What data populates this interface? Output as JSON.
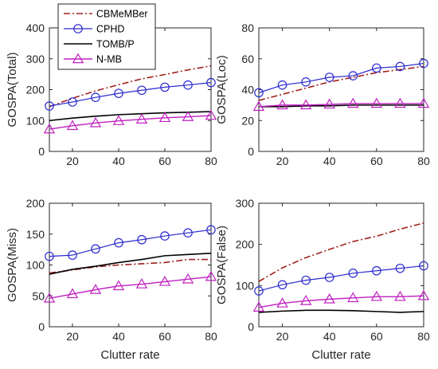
{
  "colors": {
    "CBMeMBer": "#a0201c",
    "CPHD": "#2a2ad0",
    "TOMB/P": "#000000",
    "N-MB": "#c020c0"
  },
  "chart_data": [
    {
      "type": "line",
      "ylabel": "GOSPA(Total)",
      "xlabel": "",
      "xlim": [
        10,
        80
      ],
      "ylim": [
        0,
        400
      ],
      "xticks": [
        20,
        40,
        60,
        80
      ],
      "yticks": [
        0,
        100,
        200,
        300,
        400
      ],
      "grid": false,
      "legend": "top-left",
      "x": [
        10,
        20,
        30,
        40,
        50,
        60,
        70,
        80
      ],
      "series": [
        {
          "name": "CBMeMBer",
          "values": [
            145,
            172,
            196,
            216,
            235,
            249,
            264,
            277
          ]
        },
        {
          "name": "CPHD",
          "values": [
            147,
            160,
            175,
            188,
            198,
            208,
            215,
            223
          ]
        },
        {
          "name": "TOMB/P",
          "values": [
            100,
            108,
            114,
            119,
            122,
            125,
            127,
            129
          ]
        },
        {
          "name": "N-MB",
          "values": [
            72,
            83,
            92,
            99,
            104,
            109,
            112,
            116
          ]
        }
      ]
    },
    {
      "type": "line",
      "ylabel": "GOSPA(Loc)",
      "xlabel": "",
      "xlim": [
        10,
        80
      ],
      "ylim": [
        0,
        80
      ],
      "xticks": [
        20,
        40,
        60,
        80
      ],
      "yticks": [
        0,
        20,
        40,
        60,
        80
      ],
      "grid": false,
      "x": [
        10,
        20,
        30,
        40,
        50,
        60,
        70,
        80
      ],
      "series": [
        {
          "name": "CBMeMBer",
          "values": [
            33,
            37,
            41,
            45,
            48,
            51,
            53,
            55
          ]
        },
        {
          "name": "CPHD",
          "values": [
            38,
            43,
            45,
            48,
            49,
            54,
            55,
            57
          ]
        },
        {
          "name": "TOMB/P",
          "values": [
            29,
            29,
            29.5,
            29.5,
            30,
            30,
            30,
            30
          ]
        },
        {
          "name": "N-MB",
          "values": [
            29,
            30,
            30,
            30.5,
            31,
            31,
            31,
            31
          ]
        }
      ]
    },
    {
      "type": "line",
      "ylabel": "GOSPA(Miss)",
      "xlabel": "Clutter rate",
      "xlim": [
        10,
        80
      ],
      "ylim": [
        0,
        200
      ],
      "xticks": [
        20,
        40,
        60,
        80
      ],
      "yticks": [
        0,
        50,
        100,
        150,
        200
      ],
      "grid": false,
      "x": [
        10,
        20,
        30,
        40,
        50,
        60,
        70,
        80
      ],
      "series": [
        {
          "name": "CBMeMBer",
          "values": [
            87,
            92,
            97,
            100,
            102,
            104,
            109,
            109
          ]
        },
        {
          "name": "CPHD",
          "values": [
            114,
            116,
            126,
            136,
            141,
            147,
            152,
            157
          ]
        },
        {
          "name": "TOMB/P",
          "values": [
            85,
            93,
            98,
            104,
            109,
            115,
            117,
            119
          ]
        },
        {
          "name": "N-MB",
          "values": [
            46,
            53,
            60,
            66,
            69,
            73,
            77,
            81
          ]
        }
      ]
    },
    {
      "type": "line",
      "ylabel": "GOSPA(False)",
      "xlabel": "Clutter rate",
      "xlim": [
        10,
        80
      ],
      "ylim": [
        0,
        300
      ],
      "xticks": [
        20,
        40,
        60,
        80
      ],
      "yticks": [
        0,
        100,
        200,
        300
      ],
      "grid": false,
      "x": [
        10,
        20,
        30,
        40,
        50,
        60,
        70,
        80
      ],
      "series": [
        {
          "name": "CBMeMBer",
          "values": [
            110,
            143,
            168,
            188,
            207,
            220,
            237,
            252
          ]
        },
        {
          "name": "CPHD",
          "values": [
            87,
            102,
            113,
            120,
            130,
            136,
            142,
            148
          ]
        },
        {
          "name": "TOMB/P",
          "values": [
            35,
            38,
            40,
            40,
            39,
            37,
            35,
            37
          ]
        },
        {
          "name": "N-MB",
          "values": [
            47,
            57,
            63,
            67,
            70,
            73,
            73,
            75
          ]
        }
      ]
    }
  ]
}
